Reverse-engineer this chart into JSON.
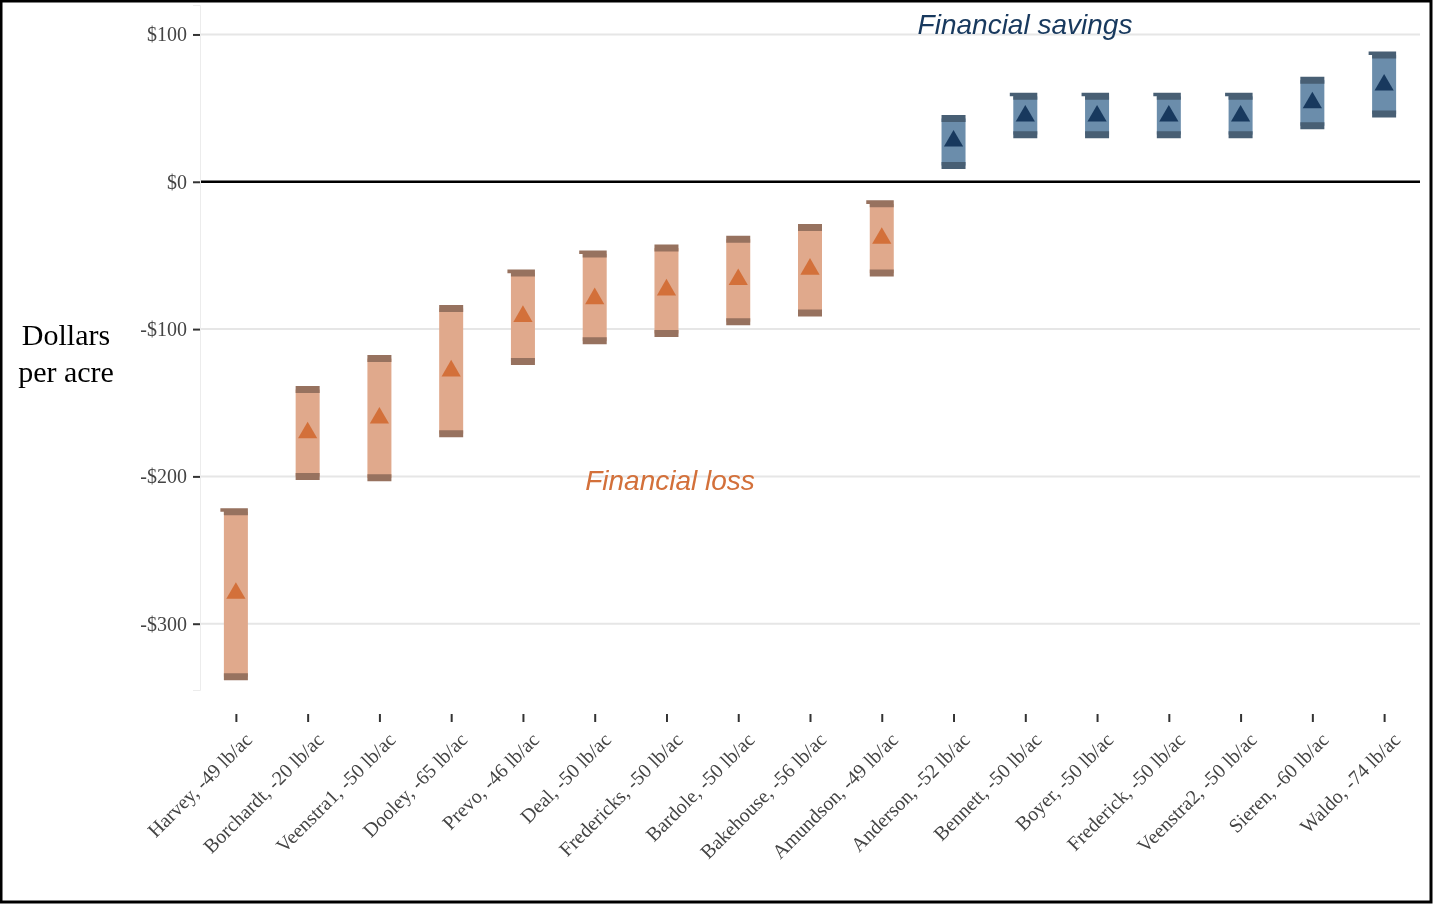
{
  "chart_data": {
    "type": "bar",
    "ylabel": "Dollars per acre",
    "categories": [
      "Harvey, -49 lb/ac",
      "Borchardt, -20 lb/ac",
      "Veenstra1, -50 lb/ac",
      "Dooley, -65 lb/ac",
      "Prevo, -46 lb/ac",
      "Deal, -50 lb/ac",
      "Fredericks, -50 lb/ac",
      "Bardole, -50 lb/ac",
      "Bakehouse, -56 lb/ac",
      "Amundson, -49 lb/ac",
      "Anderson, -52 lb/ac",
      "Bennett, -50 lb/ac",
      "Boyer, -50 lb/ac",
      "Frederick, -50 lb/ac",
      "Veenstra2, -50 lb/ac",
      "Sieren, -60 lb/ac",
      "Waldo, -74 lb/ac"
    ],
    "series": [
      {
        "base": [
          -336,
          -200,
          -201,
          -171,
          -122,
          -108,
          -103,
          -95,
          -89,
          -62,
          11,
          32,
          32,
          32,
          32,
          38,
          46
        ],
        "values": [
          112,
          59,
          81,
          85,
          60,
          59,
          58,
          56,
          58,
          47,
          32,
          26,
          26,
          26,
          26,
          31,
          40
        ],
        "colors": [
          "#e0a98c",
          "#e0a98c",
          "#e0a98c",
          "#e0a98c",
          "#e0a98c",
          "#e0a98c",
          "#e0a98c",
          "#e0a98c",
          "#e0a98c",
          "#e0a98c",
          "#6b8dab",
          "#6b8dab",
          "#6b8dab",
          "#6b8dab",
          "#6b8dab",
          "#6b8dab",
          "#6b8dab"
        ]
      },
      {
        "type": "scatter",
        "marker": "triangle",
        "x": [
          "Harvey, -49 lb/ac",
          "Borchardt, -20 lb/ac",
          "Veenstra1, -50 lb/ac",
          "Dooley, -65 lb/ac",
          "Prevo, -46 lb/ac",
          "Deal, -50 lb/ac",
          "Fredericks, -50 lb/ac",
          "Bardole, -50 lb/ac",
          "Bakehouse, -56 lb/ac",
          "Amundson, -49 lb/ac",
          "Anderson, -52 lb/ac",
          "Bennett, -50 lb/ac",
          "Boyer, -50 lb/ac",
          "Frederick, -50 lb/ac",
          "Veenstra2, -50 lb/ac",
          "Sieren, -60 lb/ac",
          "Waldo, -74 lb/ac"
        ],
        "values": [
          -278,
          -169,
          -159,
          -127,
          -90,
          -78,
          -72,
          -65,
          -58,
          -37,
          29,
          46,
          46,
          46,
          46,
          55,
          67
        ],
        "colors": [
          "#d3703a",
          "#d3703a",
          "#d3703a",
          "#d3703a",
          "#d3703a",
          "#d3703a",
          "#d3703a",
          "#d3703a",
          "#d3703a",
          "#d3703a",
          "#18395e",
          "#18395e",
          "#18395e",
          "#18395e",
          "#18395e",
          "#18395e",
          "#18395e"
        ]
      }
    ],
    "ylim": [
      -345,
      120
    ],
    "yticks": [
      {
        "value": 100,
        "label": "$100"
      },
      {
        "value": 0,
        "label": "$0"
      },
      {
        "value": -100,
        "label": "-$100"
      },
      {
        "value": -200,
        "label": "-$200"
      },
      {
        "value": -300,
        "label": "-$300"
      }
    ],
    "grid": "y",
    "ref_lines": [
      {
        "axis": "y",
        "value": 0,
        "color": "#000000"
      }
    ],
    "annotations": [
      "Financial savings",
      "Financial loss"
    ]
  }
}
